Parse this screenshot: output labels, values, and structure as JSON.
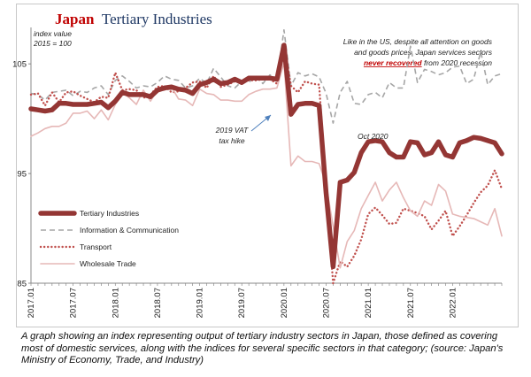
{
  "chart_data": {
    "type": "line",
    "title_part1": "Japan",
    "title_part2": "Tertiary Industries",
    "y_unit_line1": "index value",
    "y_unit_line2": "2015 = 100",
    "ylim": [
      85,
      108
    ],
    "yticks": [
      85,
      95,
      105
    ],
    "x_start": "2017-01",
    "x_end": "2022-04",
    "xticks": [
      "2017.01",
      "2017.07",
      "2018.01",
      "2018.07",
      "2019.01",
      "2019.07",
      "2020.01",
      "2020.07",
      "2021.01",
      "2021.07",
      "2022.01"
    ],
    "grid": false,
    "legend_position": "bottom-left",
    "series": [
      {
        "name": "Tertiary Industries",
        "color": "#943634",
        "style": "solid-thick",
        "values": [
          100.9,
          100.8,
          100.7,
          100.8,
          101.4,
          101.4,
          101.3,
          101.3,
          101.3,
          101.4,
          101.5,
          101.0,
          101.6,
          102.4,
          102.2,
          102.2,
          102.2,
          102.0,
          102.6,
          102.8,
          102.9,
          102.7,
          102.6,
          102.3,
          103.1,
          103.3,
          103.6,
          103.2,
          103.3,
          103.6,
          103.3,
          103.7,
          103.7,
          103.7,
          103.7,
          103.6,
          106.7,
          100.4,
          101.3,
          101.4,
          101.4,
          101.2,
          93.2,
          86.5,
          94.2,
          94.4,
          95.1,
          96.9,
          97.9,
          98.0,
          97.9,
          96.9,
          96.5,
          96.5,
          97.9,
          97.8,
          96.7,
          96.9,
          97.9,
          96.7,
          96.5,
          97.8,
          98.0,
          98.3,
          98.2,
          98.0,
          97.8,
          96.8
        ]
      },
      {
        "name": "Information & Communication",
        "color": "#a6a6a6",
        "style": "dashed",
        "values": [
          102.3,
          102.2,
          101.7,
          102.4,
          102.5,
          102.6,
          102.1,
          102.5,
          102.4,
          102.8,
          103.0,
          102.2,
          103.5,
          103.9,
          103.4,
          102.8,
          103.0,
          102.9,
          103.3,
          103.9,
          103.6,
          103.5,
          102.8,
          103.0,
          103.7,
          103.2,
          104.6,
          103.8,
          103.0,
          102.8,
          103.4,
          103.3,
          103.9,
          103.2,
          104.0,
          103.5,
          108.1,
          103.0,
          104.2,
          103.9,
          104.1,
          103.8,
          102.3,
          99.6,
          102.4,
          103.4,
          101.4,
          101.3,
          102.2,
          102.4,
          101.9,
          103.3,
          102.8,
          102.8,
          106.6,
          103.3,
          104.5,
          104.3,
          104.0,
          104.2,
          104.7,
          104.8,
          103.2,
          103.6,
          106.1,
          103.1,
          103.9,
          104.1
        ]
      },
      {
        "name": "Transport",
        "color": "#c0504d",
        "style": "dotted",
        "values": [
          102.2,
          102.3,
          101.2,
          102.4,
          101.5,
          102.4,
          102.5,
          102.1,
          101.8,
          101.5,
          102.0,
          101.9,
          104.2,
          102.6,
          102.7,
          102.6,
          101.9,
          102.2,
          102.9,
          103.0,
          102.4,
          102.5,
          102.8,
          103.3,
          103.4,
          102.8,
          103.9,
          102.9,
          103.1,
          103.4,
          103.3,
          103.5,
          103.5,
          103.6,
          103.6,
          103.2,
          106.8,
          103.0,
          102.4,
          103.4,
          103.2,
          103.1,
          93.5,
          84.5,
          87.0,
          86.5,
          87.5,
          89.0,
          91.3,
          91.9,
          91.2,
          90.4,
          90.5,
          91.8,
          91.6,
          91.4,
          91.1,
          89.9,
          90.7,
          91.6,
          89.3,
          90.2,
          91.2,
          92.3,
          93.3,
          93.9,
          95.3,
          93.6
        ]
      },
      {
        "name": "Wholesale Trade",
        "color": "#e6b8b7",
        "style": "solid-thin",
        "values": [
          98.4,
          98.7,
          99.1,
          99.3,
          99.3,
          99.6,
          100.5,
          100.5,
          100.7,
          100.0,
          100.8,
          99.9,
          101.3,
          102.4,
          101.9,
          101.3,
          102.6,
          101.6,
          102.6,
          102.6,
          102.9,
          101.8,
          101.7,
          101.2,
          102.7,
          102.3,
          102.2,
          101.7,
          101.7,
          101.6,
          101.6,
          102.2,
          102.5,
          102.7,
          102.7,
          102.8,
          105.1,
          95.7,
          96.6,
          96.1,
          96.1,
          95.9,
          94.0,
          90.2,
          86.4,
          88.8,
          89.8,
          91.8,
          93.0,
          94.2,
          92.5,
          93.5,
          94.2,
          92.8,
          91.6,
          91.1,
          92.5,
          92.1,
          94.0,
          93.4,
          91.3,
          91.1,
          91.0,
          90.9,
          90.6,
          90.3,
          91.8,
          89.3
        ]
      }
    ],
    "annotations": {
      "vat_line1": "2019 VAT",
      "vat_line2": "tax hike",
      "oct": "Oct 2020",
      "note_line1": "Like in the US, despite all attention on goods",
      "note_line2": "and goods prices, Japan services sectors",
      "note_red": "never recovered",
      "note_line3_rest": " from 2020 recession"
    }
  },
  "caption": "A graph showing an index representing output of tertiary industry sectors in Japan, those defined as covering most of domestic services, along with the indices for several specific sectors in that category; (source: Japan's Ministry of Economy, Trade, and Industry)"
}
